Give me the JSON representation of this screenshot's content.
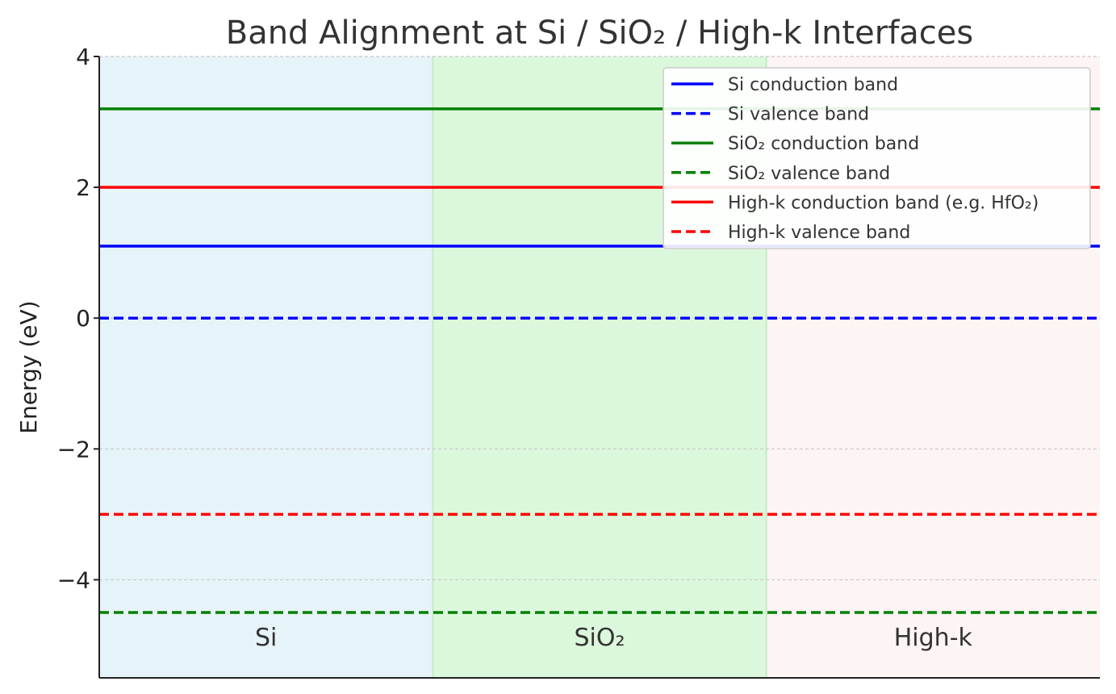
{
  "chart_data": {
    "type": "line",
    "title": "Band Alignment at Si / SiO₂ / High-k Interfaces",
    "xlabel": "",
    "ylabel": "Energy (eV)",
    "ylim": [
      -5.5,
      4
    ],
    "xlim": [
      0,
      3
    ],
    "yticks": [
      -4,
      -2,
      0,
      2,
      4
    ],
    "ytick_labels": [
      "−4",
      "−2",
      "0",
      "2",
      "4"
    ],
    "grid": "horizontal dashed",
    "legend_position": "top-right",
    "regions": [
      {
        "label": "Si",
        "x_start": 0,
        "x_end": 1,
        "color": "#e6f3f8"
      },
      {
        "label": "SiO₂",
        "x_start": 1,
        "x_end": 2,
        "color": "#dcf8dc"
      },
      {
        "label": "High-k",
        "x_start": 2,
        "x_end": 3,
        "color": "#fdf4f4"
      }
    ],
    "series": [
      {
        "name": "Si conduction band",
        "y": 1.1,
        "color": "#0000ff",
        "style": "solid"
      },
      {
        "name": "Si valence band",
        "y": 0.0,
        "color": "#0000ff",
        "style": "dashed"
      },
      {
        "name": "SiO₂ conduction band",
        "y": 3.2,
        "color": "#008000",
        "style": "solid"
      },
      {
        "name": "SiO₂ valence band",
        "y": -4.5,
        "color": "#008000",
        "style": "dashed"
      },
      {
        "name": "High-k conduction band (e.g. HfO₂)",
        "y": 2.0,
        "color": "#ff0000",
        "style": "solid"
      },
      {
        "name": "High-k valence band",
        "y": -3.0,
        "color": "#ff0000",
        "style": "dashed"
      }
    ]
  }
}
